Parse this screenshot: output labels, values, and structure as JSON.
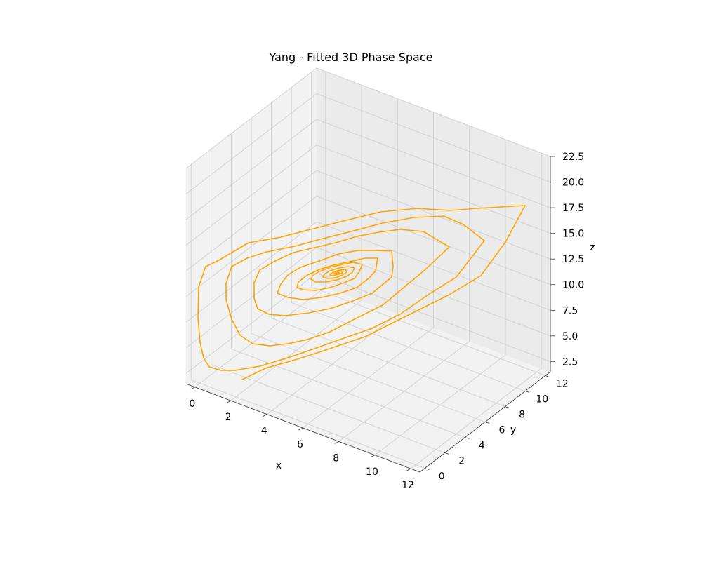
{
  "chart_data": {
    "type": "line",
    "projection": "3d",
    "title": "Yang - Fitted 3D Phase Space",
    "xlabel": "x",
    "ylabel": "y",
    "zlabel": "z",
    "xlim": [
      -0.5,
      12.5
    ],
    "ylim": [
      -0.5,
      12.5
    ],
    "zlim": [
      1.5,
      22.5
    ],
    "x_ticks": [
      "0",
      "2",
      "4",
      "6",
      "8",
      "10",
      "12"
    ],
    "y_ticks": [
      "0",
      "2",
      "4",
      "6",
      "8",
      "10",
      "12"
    ],
    "z_ticks": [
      "2.5",
      "5.0",
      "7.5",
      "10.0",
      "12.5",
      "15.0",
      "17.5",
      "20.0",
      "22.5"
    ],
    "grid": true,
    "series": [
      {
        "color": "#ffa500",
        "description": "damped spiral trajectory converging to a fixed point near x≈4.8, y≈6, z≈12",
        "x": [],
        "y": [],
        "z": []
      }
    ]
  }
}
